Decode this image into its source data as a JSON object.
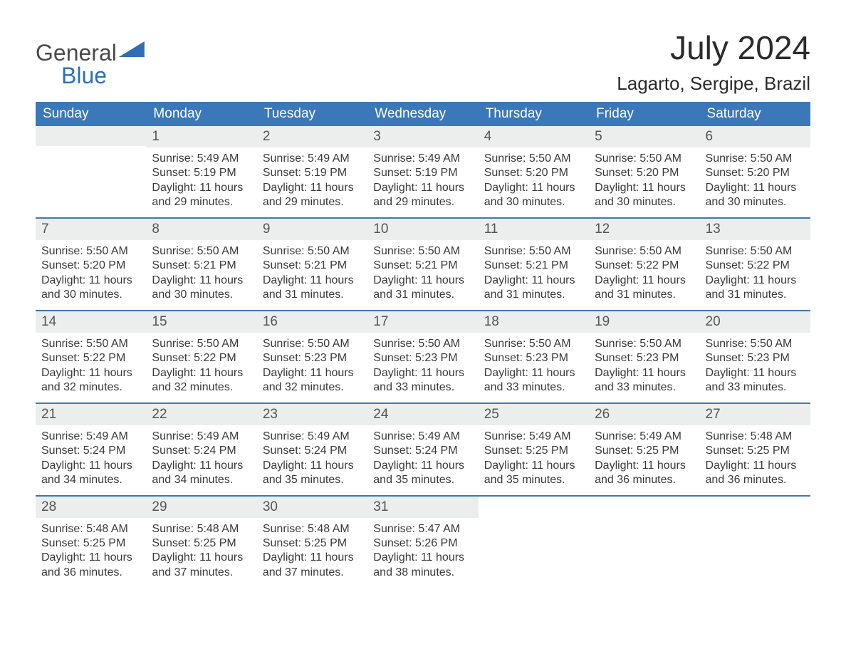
{
  "brand": {
    "general": "General",
    "blue": "Blue"
  },
  "header": {
    "month_title": "July 2024",
    "location": "Lagarto, Sergipe, Brazil"
  },
  "styling": {
    "header_bg": "#3b78b9",
    "header_text": "#ffffff",
    "daynum_bg": "#eceeee",
    "row_divider": "#3b78b9",
    "page_bg": "#ffffff",
    "body_text_color": "#333333",
    "logo_blue": "#2e6fb4",
    "month_title_fontsize": 46,
    "location_fontsize": 26,
    "dayheader_fontsize": 19,
    "body_fontsize": 16
  },
  "day_headers": [
    "Sunday",
    "Monday",
    "Tuesday",
    "Wednesday",
    "Thursday",
    "Friday",
    "Saturday"
  ],
  "weeks": [
    [
      {
        "empty": true
      },
      {
        "num": "1",
        "sunrise": "Sunrise: 5:49 AM",
        "sunset": "Sunset: 5:19 PM",
        "daylight1": "Daylight: 11 hours",
        "daylight2": "and 29 minutes."
      },
      {
        "num": "2",
        "sunrise": "Sunrise: 5:49 AM",
        "sunset": "Sunset: 5:19 PM",
        "daylight1": "Daylight: 11 hours",
        "daylight2": "and 29 minutes."
      },
      {
        "num": "3",
        "sunrise": "Sunrise: 5:49 AM",
        "sunset": "Sunset: 5:19 PM",
        "daylight1": "Daylight: 11 hours",
        "daylight2": "and 29 minutes."
      },
      {
        "num": "4",
        "sunrise": "Sunrise: 5:50 AM",
        "sunset": "Sunset: 5:20 PM",
        "daylight1": "Daylight: 11 hours",
        "daylight2": "and 30 minutes."
      },
      {
        "num": "5",
        "sunrise": "Sunrise: 5:50 AM",
        "sunset": "Sunset: 5:20 PM",
        "daylight1": "Daylight: 11 hours",
        "daylight2": "and 30 minutes."
      },
      {
        "num": "6",
        "sunrise": "Sunrise: 5:50 AM",
        "sunset": "Sunset: 5:20 PM",
        "daylight1": "Daylight: 11 hours",
        "daylight2": "and 30 minutes."
      }
    ],
    [
      {
        "num": "7",
        "sunrise": "Sunrise: 5:50 AM",
        "sunset": "Sunset: 5:20 PM",
        "daylight1": "Daylight: 11 hours",
        "daylight2": "and 30 minutes."
      },
      {
        "num": "8",
        "sunrise": "Sunrise: 5:50 AM",
        "sunset": "Sunset: 5:21 PM",
        "daylight1": "Daylight: 11 hours",
        "daylight2": "and 30 minutes."
      },
      {
        "num": "9",
        "sunrise": "Sunrise: 5:50 AM",
        "sunset": "Sunset: 5:21 PM",
        "daylight1": "Daylight: 11 hours",
        "daylight2": "and 31 minutes."
      },
      {
        "num": "10",
        "sunrise": "Sunrise: 5:50 AM",
        "sunset": "Sunset: 5:21 PM",
        "daylight1": "Daylight: 11 hours",
        "daylight2": "and 31 minutes."
      },
      {
        "num": "11",
        "sunrise": "Sunrise: 5:50 AM",
        "sunset": "Sunset: 5:21 PM",
        "daylight1": "Daylight: 11 hours",
        "daylight2": "and 31 minutes."
      },
      {
        "num": "12",
        "sunrise": "Sunrise: 5:50 AM",
        "sunset": "Sunset: 5:22 PM",
        "daylight1": "Daylight: 11 hours",
        "daylight2": "and 31 minutes."
      },
      {
        "num": "13",
        "sunrise": "Sunrise: 5:50 AM",
        "sunset": "Sunset: 5:22 PM",
        "daylight1": "Daylight: 11 hours",
        "daylight2": "and 31 minutes."
      }
    ],
    [
      {
        "num": "14",
        "sunrise": "Sunrise: 5:50 AM",
        "sunset": "Sunset: 5:22 PM",
        "daylight1": "Daylight: 11 hours",
        "daylight2": "and 32 minutes."
      },
      {
        "num": "15",
        "sunrise": "Sunrise: 5:50 AM",
        "sunset": "Sunset: 5:22 PM",
        "daylight1": "Daylight: 11 hours",
        "daylight2": "and 32 minutes."
      },
      {
        "num": "16",
        "sunrise": "Sunrise: 5:50 AM",
        "sunset": "Sunset: 5:23 PM",
        "daylight1": "Daylight: 11 hours",
        "daylight2": "and 32 minutes."
      },
      {
        "num": "17",
        "sunrise": "Sunrise: 5:50 AM",
        "sunset": "Sunset: 5:23 PM",
        "daylight1": "Daylight: 11 hours",
        "daylight2": "and 33 minutes."
      },
      {
        "num": "18",
        "sunrise": "Sunrise: 5:50 AM",
        "sunset": "Sunset: 5:23 PM",
        "daylight1": "Daylight: 11 hours",
        "daylight2": "and 33 minutes."
      },
      {
        "num": "19",
        "sunrise": "Sunrise: 5:50 AM",
        "sunset": "Sunset: 5:23 PM",
        "daylight1": "Daylight: 11 hours",
        "daylight2": "and 33 minutes."
      },
      {
        "num": "20",
        "sunrise": "Sunrise: 5:50 AM",
        "sunset": "Sunset: 5:23 PM",
        "daylight1": "Daylight: 11 hours",
        "daylight2": "and 33 minutes."
      }
    ],
    [
      {
        "num": "21",
        "sunrise": "Sunrise: 5:49 AM",
        "sunset": "Sunset: 5:24 PM",
        "daylight1": "Daylight: 11 hours",
        "daylight2": "and 34 minutes."
      },
      {
        "num": "22",
        "sunrise": "Sunrise: 5:49 AM",
        "sunset": "Sunset: 5:24 PM",
        "daylight1": "Daylight: 11 hours",
        "daylight2": "and 34 minutes."
      },
      {
        "num": "23",
        "sunrise": "Sunrise: 5:49 AM",
        "sunset": "Sunset: 5:24 PM",
        "daylight1": "Daylight: 11 hours",
        "daylight2": "and 35 minutes."
      },
      {
        "num": "24",
        "sunrise": "Sunrise: 5:49 AM",
        "sunset": "Sunset: 5:24 PM",
        "daylight1": "Daylight: 11 hours",
        "daylight2": "and 35 minutes."
      },
      {
        "num": "25",
        "sunrise": "Sunrise: 5:49 AM",
        "sunset": "Sunset: 5:25 PM",
        "daylight1": "Daylight: 11 hours",
        "daylight2": "and 35 minutes."
      },
      {
        "num": "26",
        "sunrise": "Sunrise: 5:49 AM",
        "sunset": "Sunset: 5:25 PM",
        "daylight1": "Daylight: 11 hours",
        "daylight2": "and 36 minutes."
      },
      {
        "num": "27",
        "sunrise": "Sunrise: 5:48 AM",
        "sunset": "Sunset: 5:25 PM",
        "daylight1": "Daylight: 11 hours",
        "daylight2": "and 36 minutes."
      }
    ],
    [
      {
        "num": "28",
        "sunrise": "Sunrise: 5:48 AM",
        "sunset": "Sunset: 5:25 PM",
        "daylight1": "Daylight: 11 hours",
        "daylight2": "and 36 minutes."
      },
      {
        "num": "29",
        "sunrise": "Sunrise: 5:48 AM",
        "sunset": "Sunset: 5:25 PM",
        "daylight1": "Daylight: 11 hours",
        "daylight2": "and 37 minutes."
      },
      {
        "num": "30",
        "sunrise": "Sunrise: 5:48 AM",
        "sunset": "Sunset: 5:25 PM",
        "daylight1": "Daylight: 11 hours",
        "daylight2": "and 37 minutes."
      },
      {
        "num": "31",
        "sunrise": "Sunrise: 5:47 AM",
        "sunset": "Sunset: 5:26 PM",
        "daylight1": "Daylight: 11 hours",
        "daylight2": "and 38 minutes."
      },
      {
        "empty": true
      },
      {
        "empty": true
      },
      {
        "empty": true
      }
    ]
  ]
}
